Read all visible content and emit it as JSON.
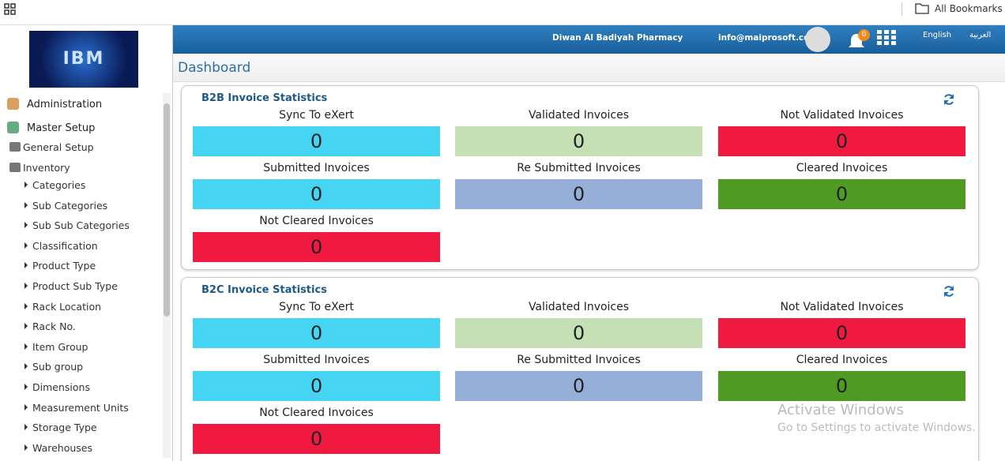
{
  "browser": {
    "bookmarks": "All Bookmarks"
  },
  "sidebar": {
    "logo": "IBM",
    "sections": [
      "Administration",
      "Master Setup"
    ],
    "groups": [
      "General Setup",
      "Inventory"
    ],
    "items": [
      "Categories",
      "Sub Categories",
      "Sub Sub Categories",
      "Classification",
      "Product Type",
      "Product Sub Type",
      "Rack Location",
      "Rack No.",
      "Item Group",
      "Sub group",
      "Dimensions",
      "Measurement Units",
      "Storage Type",
      "Warehouses"
    ]
  },
  "header": {
    "company": "Diwan Al Badiyah Pharmacy",
    "email": "info@maiprosoft.com",
    "notifications": 0,
    "languages": [
      "English",
      "العربية"
    ]
  },
  "page": {
    "title": "Dashboard"
  },
  "panels": [
    {
      "title": "B2B Invoice Statistics",
      "tiles": [
        {
          "label": "Sync To eXert",
          "value": 0,
          "color": "#45d5f2"
        },
        {
          "label": "Validated Invoices",
          "value": 0,
          "color": "#c5e0b4"
        },
        {
          "label": "Not Validated Invoices",
          "value": 0,
          "color": "#f01a40"
        },
        {
          "label": "Submitted Invoices",
          "value": 0,
          "color": "#45d5f2"
        },
        {
          "label": "Re Submitted Invoices",
          "value": 0,
          "color": "#95afd9"
        },
        {
          "label": "Cleared Invoices",
          "value": 0,
          "color": "#4f9a22"
        },
        {
          "label": "Not Cleared Invoices",
          "value": 0,
          "color": "#f01a40"
        }
      ]
    },
    {
      "title": "B2C Invoice Statistics",
      "tiles": [
        {
          "label": "Sync To eXert",
          "value": 0,
          "color": "#45d5f2"
        },
        {
          "label": "Validated Invoices",
          "value": 0,
          "color": "#c5e0b4"
        },
        {
          "label": "Not Validated Invoices",
          "value": 0,
          "color": "#f01a40"
        },
        {
          "label": "Submitted Invoices",
          "value": 0,
          "color": "#45d5f2"
        },
        {
          "label": "Re Submitted Invoices",
          "value": 0,
          "color": "#95afd9"
        },
        {
          "label": "Cleared Invoices",
          "value": 0,
          "color": "#4f9a22"
        },
        {
          "label": "Not Cleared Invoices",
          "value": 0,
          "color": "#f01a40"
        }
      ]
    }
  ],
  "watermark": {
    "title": "Activate Windows",
    "subtitle": "Go to Settings to activate Windows."
  }
}
